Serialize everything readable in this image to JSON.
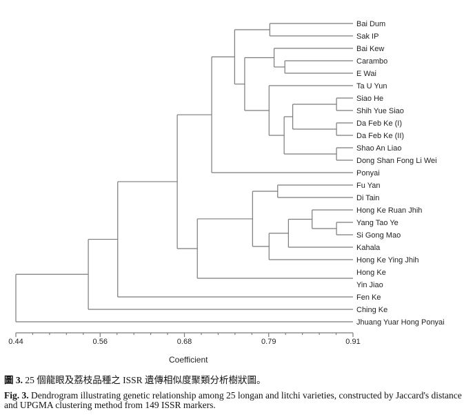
{
  "chart_data": {
    "type": "dendrogram",
    "xlabel": "Coefficient",
    "xlim": [
      0.44,
      0.91
    ],
    "ticks": [
      "0.44",
      "0.56",
      "0.68",
      "0.79",
      "0.91"
    ],
    "tick_values": [
      0.44,
      0.56,
      0.68,
      0.79,
      0.91
    ],
    "line_color": "#7a7a7a",
    "tree": {
      "h": 0.44,
      "c": [
        {
          "h": 0.541,
          "c": [
            {
              "h": 0.582,
              "c": [
                {
                  "h": 0.665,
                  "c": [
                    {
                      "h": 0.713,
                      "c": [
                        {
                          "h": 0.745,
                          "c": [
                            {
                              "h": 0.794,
                              "c": [
                                "Bai Dum",
                                "Sak IP"
                              ]
                            },
                            {
                              "h": 0.759,
                              "c": [
                                {
                                  "h": 0.8,
                                  "c": [
                                    "Bai Kew",
                                    {
                                      "h": 0.815,
                                      "c": [
                                        "Carambo",
                                        "E Wai"
                                      ]
                                    }
                                  ]
                                },
                                {
                                  "h": 0.793,
                                  "c": [
                                    "Ta U Yun",
                                    {
                                      "h": 0.814,
                                      "c": [
                                        {
                                          "h": 0.826,
                                          "c": [
                                            {
                                              "h": 0.887,
                                              "c": [
                                                "Siao He",
                                                "Shih Yue Siao"
                                              ]
                                            },
                                            {
                                              "h": 0.887,
                                              "c": [
                                                "Da Feb Ke (I)",
                                                "Da Feb Ke (II)"
                                              ]
                                            }
                                          ]
                                        },
                                        {
                                          "h": 0.887,
                                          "c": [
                                            "Shao An Liao",
                                            "Dong Shan Fong Li Wei"
                                          ]
                                        }
                                      ]
                                    }
                                  ]
                                }
                              ]
                            }
                          ]
                        },
                        "Ponyai"
                      ]
                    },
                    {
                      "h": 0.693,
                      "c": [
                        {
                          "h": 0.77,
                          "c": [
                            {
                              "h": 0.805,
                              "c": [
                                "Fu Yan",
                                "Di Tain"
                              ]
                            },
                            {
                              "h": 0.793,
                              "c": [
                                {
                                  "h": 0.82,
                                  "c": [
                                    {
                                      "h": 0.853,
                                      "c": [
                                        "Hong Ke Ruan Jhih",
                                        {
                                          "h": 0.887,
                                          "c": [
                                            "Yang Tao Ye",
                                            "Si Gong Mao"
                                          ]
                                        }
                                      ]
                                    },
                                    "Kahala"
                                  ]
                                },
                                "Hong Ke Ying Jhih"
                              ]
                            }
                          ]
                        },
                        {
                          "h": 0.91,
                          "c": [
                            "Hong Ke",
                            "Yin Jiao"
                          ]
                        }
                      ]
                    }
                  ]
                },
                "Fen Ke"
              ]
            },
            "Ching Ke"
          ]
        },
        "Jhuang Yuar Hong Ponyai"
      ]
    }
  },
  "caption": {
    "zh_label": "圖 3.",
    "zh_text": " 25 個龍眼及荔枝品種之 ISSR 遺傳相似度聚類分析樹狀圖。",
    "en_label": "Fig. 3.",
    "en_text": " Dendrogram illustrating genetic relationship among 25 longan and litchi varieties, constructed by Jaccard's distance and UPGMA clustering method from 149 ISSR markers."
  }
}
